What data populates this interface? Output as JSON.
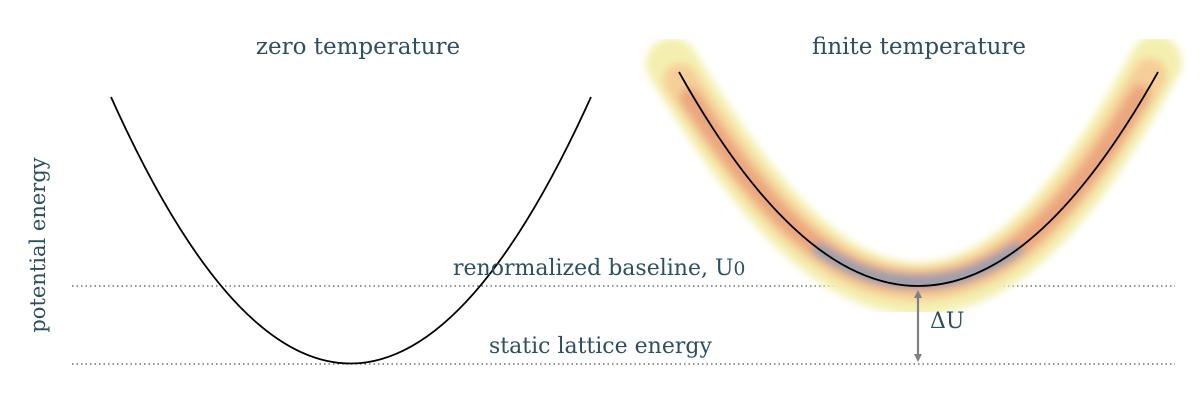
{
  "panels": {
    "left_title": "zero temperature",
    "right_title": "finite temperature"
  },
  "axis": {
    "ylabel": "potential energy"
  },
  "annotations": {
    "baseline": "renormalized baseline, U",
    "baseline_sub": "0",
    "static": "static lattice energy",
    "delta": "ΔU"
  },
  "colors": {
    "text": "#2f4f5e",
    "curve": "#000000",
    "reference_line": "#555555",
    "arrow": "#808080",
    "band_outer": "#f4efb0",
    "band_mid": "#f6ce98",
    "band_inner": "#eba67f",
    "band_core": "#9c9eac"
  }
}
